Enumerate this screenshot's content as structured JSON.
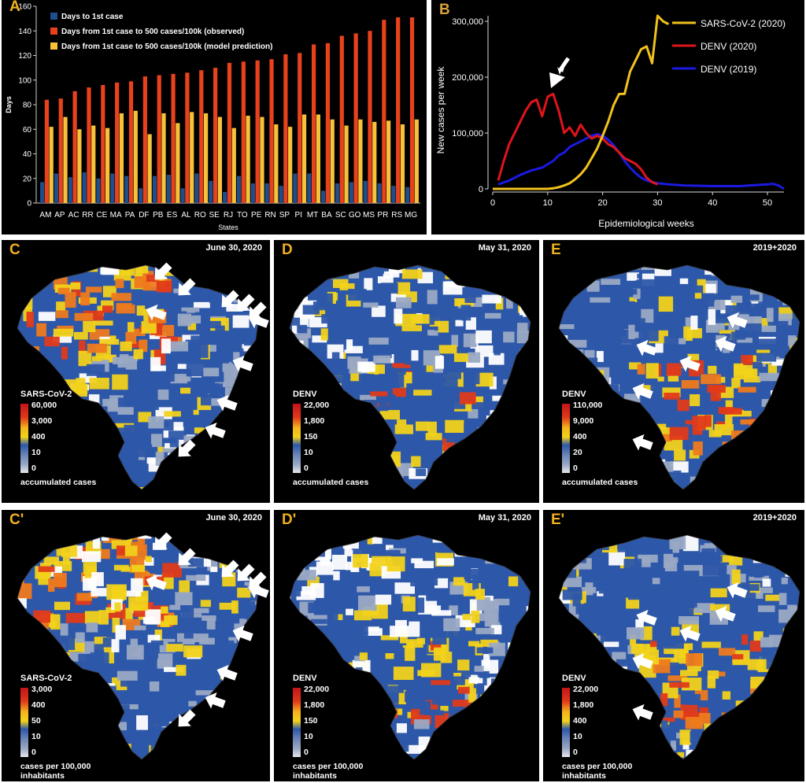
{
  "chart_data": [
    {
      "panel": "A",
      "type": "bar",
      "ylabel": "Days",
      "xlabel": "States",
      "ylim": [
        0,
        160
      ],
      "yticks": [
        0,
        20,
        40,
        60,
        80,
        100,
        120,
        140,
        160
      ],
      "legend_position": "top-left",
      "categories": [
        "AM",
        "AP",
        "AC",
        "RR",
        "CE",
        "MA",
        "PA",
        "DF",
        "PB",
        "ES",
        "AL",
        "RO",
        "SE",
        "RJ",
        "TO",
        "PE",
        "RN",
        "SP",
        "PI",
        "MT",
        "BA",
        "SC",
        "GO",
        "MS",
        "PR",
        "RS",
        "MG"
      ],
      "series": [
        {
          "name": "Days to 1st case",
          "color": "#1f4e8c",
          "values": [
            17,
            24,
            21,
            25,
            20,
            24,
            22,
            12,
            22,
            23,
            12,
            24,
            18,
            9,
            22,
            16,
            16,
            14,
            24,
            24,
            10,
            16,
            17,
            18,
            16,
            14,
            13
          ]
        },
        {
          "name": "Days from 1st case to 500 cases/100k (observed)",
          "color": "#e8421c",
          "values": [
            84,
            85,
            91,
            94,
            96,
            98,
            99,
            103,
            104,
            105,
            106,
            108,
            110,
            114,
            115,
            116,
            117,
            121,
            122,
            129,
            130,
            136,
            138,
            140,
            149,
            151,
            151
          ]
        },
        {
          "name": "Days from 1st case to 500 cases/100k (model prediction)",
          "color": "#f7c23a",
          "values": [
            62,
            70,
            60,
            63,
            61,
            73,
            75,
            56,
            73,
            65,
            74,
            73,
            70,
            61,
            71,
            70,
            64,
            62,
            72,
            72,
            68,
            63,
            68,
            66,
            67,
            64,
            68
          ]
        }
      ]
    },
    {
      "panel": "B",
      "type": "line",
      "xlabel": "Epidemiological weeks",
      "ylabel": "New cases per week",
      "xlim": [
        0,
        53
      ],
      "ylim": [
        0,
        310000
      ],
      "xticks": [
        0,
        10,
        20,
        30,
        40,
        50
      ],
      "yticks": [
        0,
        100000,
        200000,
        300000
      ],
      "ytick_labels": [
        "0",
        "100,000",
        "200,000",
        "300,000"
      ],
      "legend_position": "top-right",
      "series": [
        {
          "name": "SARS-CoV-2 (2020)",
          "color": "#f2c21b",
          "x": [
            0,
            2,
            4,
            6,
            8,
            10,
            11,
            12,
            13,
            14,
            15,
            16,
            17,
            18,
            19,
            20,
            21,
            22,
            23,
            24,
            25,
            26,
            27,
            28,
            29,
            30,
            31,
            32
          ],
          "y": [
            0,
            0,
            0,
            0,
            0,
            0,
            1000,
            3000,
            6000,
            10000,
            17000,
            26000,
            38000,
            55000,
            72000,
            95000,
            120000,
            150000,
            170000,
            170000,
            210000,
            230000,
            250000,
            255000,
            225000,
            310000,
            300000,
            295000
          ]
        },
        {
          "name": "DENV (2020)",
          "color": "#e0141b",
          "x": [
            1,
            2,
            3,
            4,
            5,
            6,
            7,
            8,
            9,
            10,
            11,
            12,
            13,
            14,
            15,
            16,
            17,
            18,
            19,
            20,
            21,
            22,
            23,
            24,
            25,
            26,
            27,
            28,
            29,
            30
          ],
          "y": [
            15000,
            50000,
            80000,
            100000,
            120000,
            140000,
            155000,
            160000,
            130000,
            165000,
            170000,
            140000,
            100000,
            110000,
            95000,
            115000,
            100000,
            90000,
            95000,
            90000,
            80000,
            75000,
            65000,
            55000,
            50000,
            45000,
            35000,
            20000,
            12000,
            8000
          ]
        },
        {
          "name": "DENV (2019)",
          "color": "#1a1ae0",
          "x": [
            1,
            3,
            5,
            7,
            9,
            11,
            12,
            13,
            14,
            15,
            16,
            17,
            18,
            19,
            20,
            21,
            22,
            23,
            24,
            25,
            26,
            27,
            28,
            30,
            32,
            35,
            40,
            45,
            50,
            51,
            52,
            53
          ],
          "y": [
            8000,
            15000,
            25000,
            33000,
            38000,
            50000,
            60000,
            65000,
            75000,
            80000,
            85000,
            90000,
            95000,
            98000,
            95000,
            88000,
            78000,
            65000,
            50000,
            38000,
            28000,
            20000,
            15000,
            10000,
            8000,
            6000,
            5000,
            5000,
            8000,
            9000,
            6000,
            0
          ]
        }
      ]
    }
  ],
  "panel_b_arrow_label": "",
  "maps": [
    {
      "label": "C",
      "date": "June 30, 2020",
      "disease": "SARS-CoV-2",
      "legend": [
        "60,000",
        "3,000",
        "400",
        "10",
        "0"
      ],
      "caption": [
        "accumulated cases"
      ]
    },
    {
      "label": "D",
      "date": "May 31, 2020",
      "disease": "DENV",
      "legend": [
        "22,000",
        "1,800",
        "150",
        "10",
        "0"
      ],
      "caption": [
        "accumulated cases"
      ]
    },
    {
      "label": "E",
      "date": "2019+2020",
      "disease": "DENV",
      "legend": [
        "110,000",
        "9,000",
        "400",
        "20",
        "0"
      ],
      "caption": [
        "accumulated cases"
      ]
    },
    {
      "label": "C'",
      "date": "June 30, 2020",
      "disease": "SARS-CoV-2",
      "legend": [
        "3,000",
        "400",
        "50",
        "10",
        "0"
      ],
      "caption": [
        "cases per 100,000",
        "inhabitants"
      ]
    },
    {
      "label": "D'",
      "date": "May 31, 2020",
      "disease": "DENV",
      "legend": [
        "22,000",
        "1,800",
        "150",
        "10",
        "0"
      ],
      "caption": [
        "cases per 100,000",
        "inhabitants"
      ]
    },
    {
      "label": "E'",
      "date": "2019+2020",
      "disease": "DENV",
      "legend": [
        "22,000",
        "1,800",
        "400",
        "10",
        "0"
      ],
      "caption": [
        "cases per 100,000",
        "inhabitants"
      ]
    }
  ],
  "panel_labels": {
    "a": "A",
    "b": "B"
  },
  "colors": {
    "map_palette": [
      "#9aa9c4",
      "#6f88b8",
      "#2d57a8",
      "#1d3f93",
      "#f2d21a",
      "#f4b51c",
      "#ee7a1c",
      "#e03a1a",
      "#c3141a",
      "#ffffff"
    ],
    "arrow": "#ffffff",
    "panel_bg": "#000000",
    "label": "#f0b020"
  }
}
